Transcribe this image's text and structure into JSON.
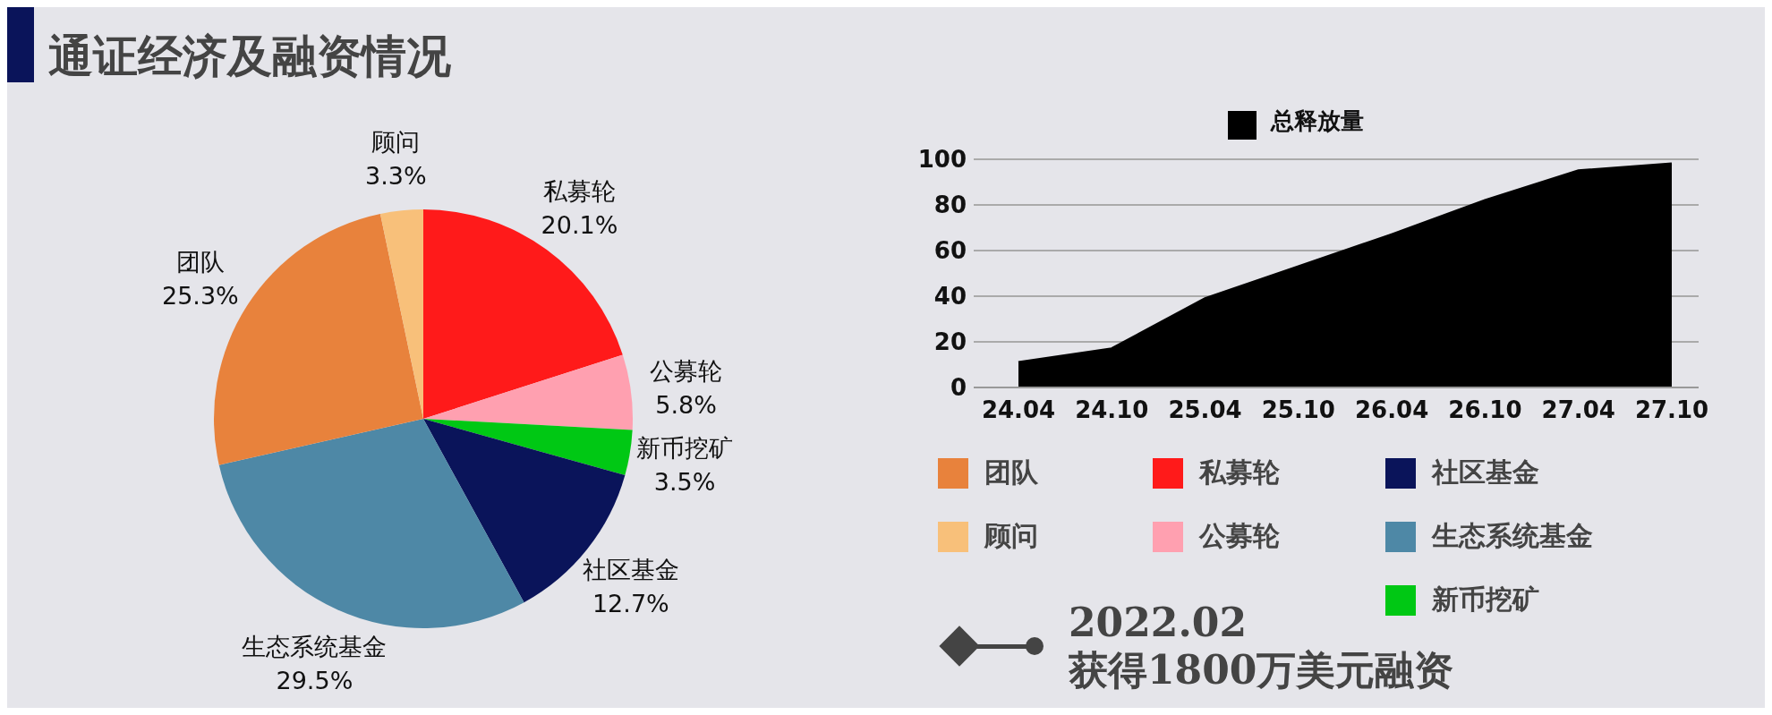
{
  "chart_data": [
    {
      "type": "pie",
      "title": "通证经济及融资情况",
      "categories": [
        "私募轮",
        "公募轮",
        "新币挖矿",
        "社区基金",
        "生态系统基金",
        "团队",
        "顾问"
      ],
      "values": [
        20.1,
        5.8,
        3.5,
        12.7,
        29.5,
        25.3,
        3.3
      ],
      "colors": [
        "#ff1a1a",
        "#ffa0b0",
        "#00c814",
        "#0a145a",
        "#4e88a6",
        "#e8823c",
        "#f8c07a"
      ],
      "value_labels": [
        "20.1%",
        "5.8%",
        "3.5%",
        "12.7%",
        "29.5%",
        "25.3%",
        "3.3%"
      ],
      "legend": "right",
      "annotations": [
        "2022.02",
        "获得1800万美元融资"
      ]
    },
    {
      "type": "area",
      "categories": [
        "24.04",
        "24.10",
        "25.04",
        "25.10",
        "26.04",
        "26.10",
        "27.04",
        "27.10"
      ],
      "series": [
        {
          "name": "总释放量",
          "color": "#000000",
          "values": [
            11,
            17,
            39,
            53,
            67,
            82,
            95,
            98
          ]
        }
      ],
      "ylim": [
        0,
        100
      ],
      "yticks": [
        0,
        20,
        40,
        60,
        80,
        100
      ],
      "grid": "y",
      "legend": "top"
    }
  ]
}
